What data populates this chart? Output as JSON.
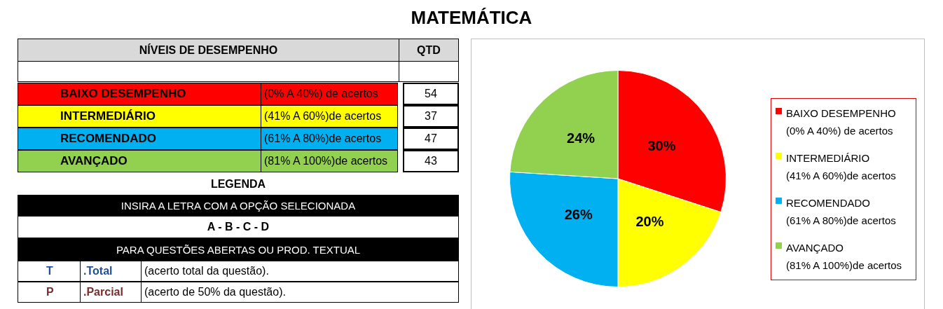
{
  "chart_data": {
    "type": "pie",
    "title": "MATEMÁTICA",
    "categories": [
      "BAIXO DESEMPENHO\n(0% A 40%) de acertos",
      "INTERMEDIÁRIO\n(41% A 60%)de acertos",
      "RECOMENDADO\n(61% A 80%)de acertos",
      "AVANÇADO\n(81% A 100%)de acertos"
    ],
    "values": [
      30,
      20,
      26,
      24
    ],
    "value_labels": [
      "30%",
      "20%",
      "26%",
      "24%"
    ],
    "colors": [
      "#ff0000",
      "#ffff00",
      "#00b0f0",
      "#92d050"
    ],
    "legend": "right",
    "annotations": [
      "NÍVEIS DE DESEMPENHO",
      "QTD",
      "BAIXO DESEMPENHO",
      "(0% A 40%) de acertos",
      "54",
      "INTERMEDIÁRIO",
      "(41% A 60%)de acertos",
      "37",
      "RECOMENDADO",
      "(61% A 80%)de acertos",
      "47",
      "AVANÇADO",
      "(81% A 100%)de acertos",
      "43",
      "LEGENDA",
      "INSIRA A LETRA COM A OPÇÃO SELECIONADA",
      "A - B - C - D",
      "PARA QUESTÕES ABERTAS OU PROD. TEXTUAL",
      "T",
      ".Total",
      "(acerto total da questão).",
      "P",
      ".Parcial",
      "(acerto de 50% da questão)."
    ]
  }
}
